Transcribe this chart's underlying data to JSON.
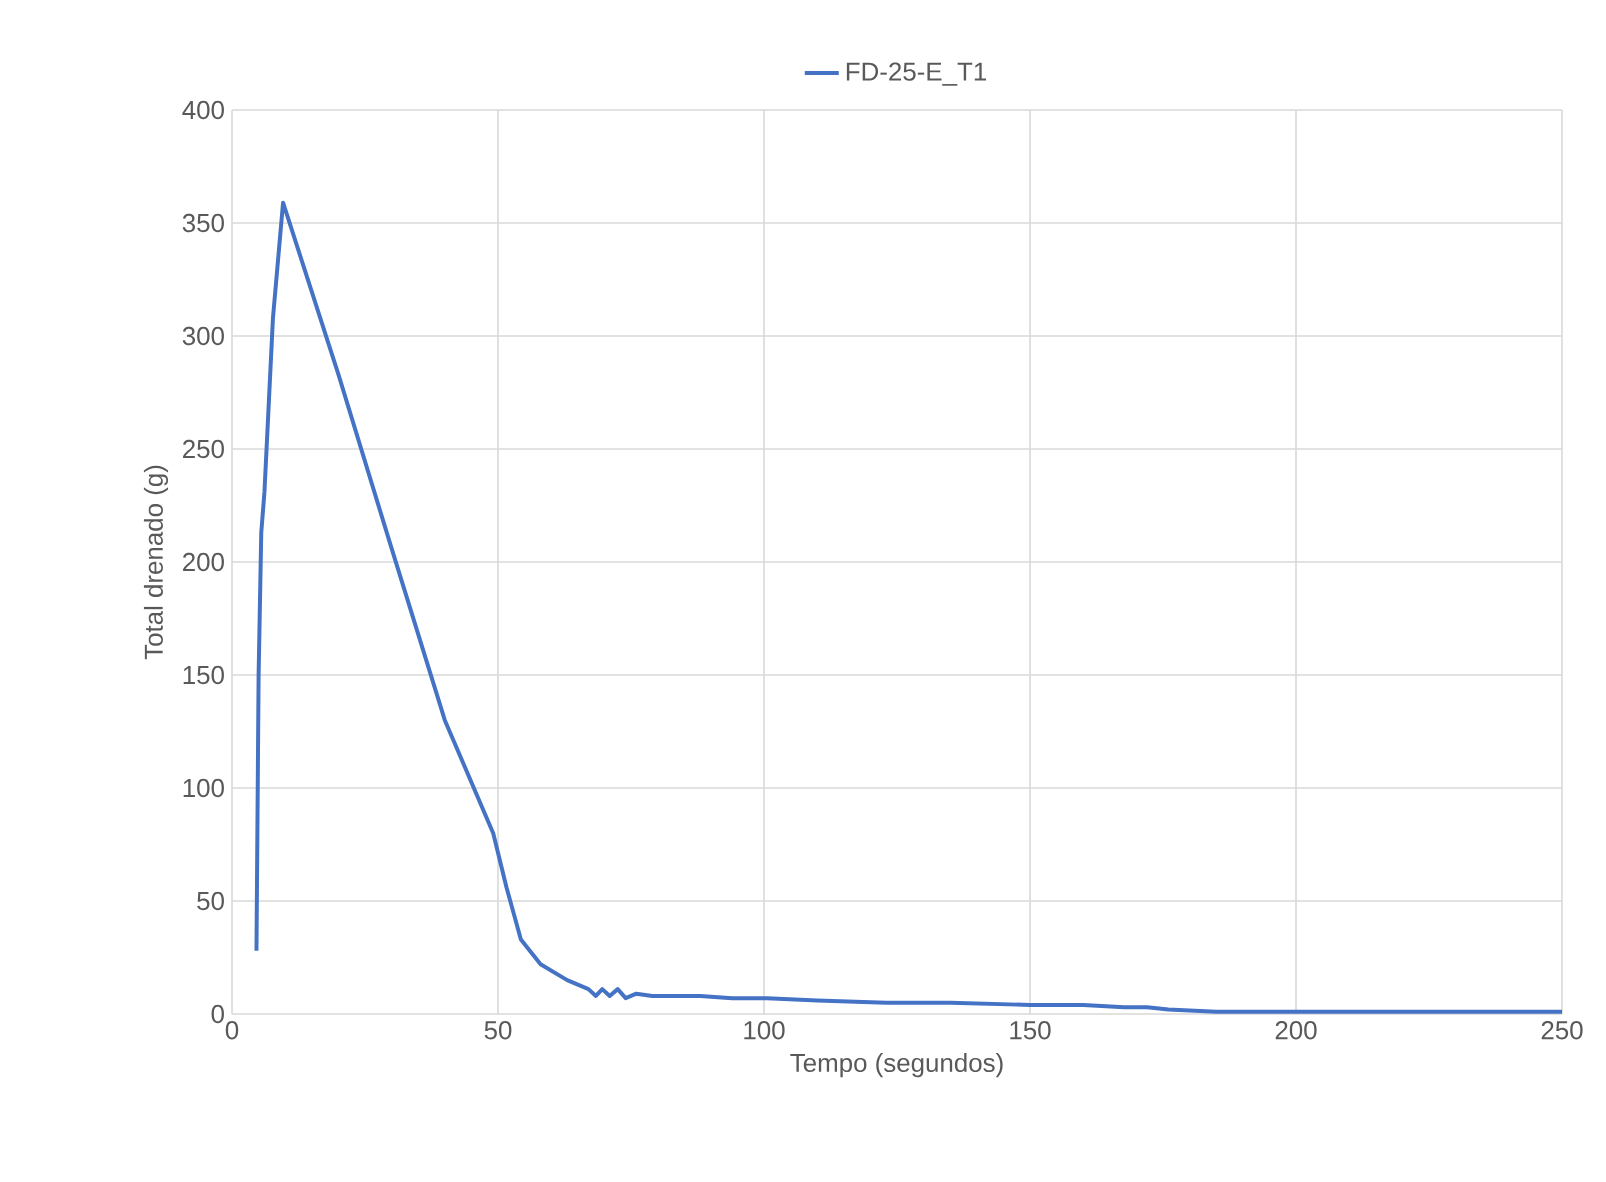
{
  "chart_data": {
    "type": "line",
    "xlabel": "Tempo (segundos)",
    "ylabel": "Total drenado (g)",
    "xlim": [
      0,
      250
    ],
    "ylim": [
      0,
      400
    ],
    "xticks": [
      0,
      50,
      100,
      150,
      200,
      250
    ],
    "yticks": [
      0,
      50,
      100,
      150,
      200,
      250,
      300,
      350,
      400
    ],
    "grid": true,
    "legend": "top",
    "marker": "none",
    "line_style": "solid",
    "series": [
      {
        "name": "FD-25-E_T1",
        "color": "#4472c4",
        "x": [
          4.6,
          5.0,
          5.5,
          6.1,
          7.7,
          9.6,
          20,
          30,
          40,
          49.1,
          51.6,
          54.3,
          58,
          63,
          67,
          68.4,
          69.6,
          71,
          72.5,
          74,
          76,
          79,
          83,
          88,
          94,
          100.6,
          110,
          123,
          135,
          150,
          160,
          167.7,
          172,
          176,
          185,
          200,
          225,
          250
        ],
        "values": [
          28,
          150,
          213,
          231,
          308,
          359,
          283,
          206,
          130,
          80,
          56,
          33,
          22,
          15,
          11,
          8,
          11,
          8,
          11,
          7,
          9,
          8,
          8,
          8,
          7,
          7,
          6,
          5,
          5,
          4,
          4,
          3,
          3,
          2,
          1,
          1,
          1,
          1
        ]
      }
    ]
  }
}
